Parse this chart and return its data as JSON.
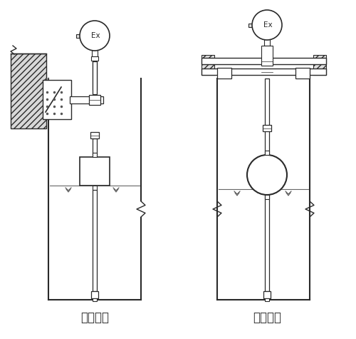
{
  "title_left": "架装固定",
  "title_right": "法兰固定",
  "bg_color": "#ffffff",
  "line_color": "#2a2a2a",
  "font_size_label": 12
}
